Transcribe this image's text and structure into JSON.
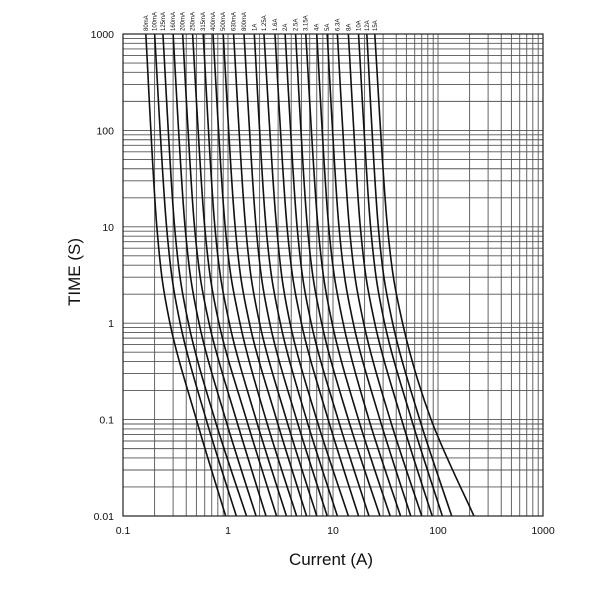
{
  "chart_data": {
    "type": "line",
    "xlabel": "Current (A)",
    "ylabel": "TIME (S)",
    "x_scale": "log",
    "y_scale": "log",
    "xlim": [
      0.1,
      1000
    ],
    "ylim": [
      0.01,
      1000
    ],
    "x_ticks": [
      "0.1",
      "1",
      "10",
      "100",
      "1000"
    ],
    "y_ticks": [
      "0.01",
      "0.1",
      "1",
      "10",
      "100",
      "1000"
    ],
    "grid": true,
    "series": [
      {
        "name": "80mA",
        "values": [
          [
            0.165,
            1000
          ],
          [
            0.21,
            10
          ],
          [
            0.28,
            1
          ],
          [
            0.5,
            0.1
          ],
          [
            0.95,
            0.01
          ]
        ]
      },
      {
        "name": "100mA",
        "values": [
          [
            0.2,
            1000
          ],
          [
            0.26,
            10
          ],
          [
            0.35,
            1
          ],
          [
            0.62,
            0.1
          ],
          [
            1.2,
            0.01
          ]
        ]
      },
      {
        "name": "125mA",
        "values": [
          [
            0.24,
            1000
          ],
          [
            0.31,
            10
          ],
          [
            0.42,
            1
          ],
          [
            0.75,
            0.1
          ],
          [
            1.5,
            0.01
          ]
        ]
      },
      {
        "name": "160mA",
        "values": [
          [
            0.3,
            1000
          ],
          [
            0.39,
            10
          ],
          [
            0.53,
            1
          ],
          [
            0.95,
            0.1
          ],
          [
            1.85,
            0.01
          ]
        ]
      },
      {
        "name": "200mA",
        "values": [
          [
            0.37,
            1000
          ],
          [
            0.48,
            10
          ],
          [
            0.66,
            1
          ],
          [
            1.2,
            0.1
          ],
          [
            2.3,
            0.01
          ]
        ]
      },
      {
        "name": "250mA",
        "values": [
          [
            0.46,
            1000
          ],
          [
            0.6,
            10
          ],
          [
            0.82,
            1
          ],
          [
            1.5,
            0.1
          ],
          [
            2.9,
            0.01
          ]
        ]
      },
      {
        "name": "315mA",
        "values": [
          [
            0.58,
            1000
          ],
          [
            0.75,
            10
          ],
          [
            1.03,
            1
          ],
          [
            1.85,
            0.1
          ],
          [
            3.6,
            0.01
          ]
        ]
      },
      {
        "name": "400mA",
        "values": [
          [
            0.72,
            1000
          ],
          [
            0.94,
            10
          ],
          [
            1.3,
            1
          ],
          [
            2.3,
            0.1
          ],
          [
            4.5,
            0.01
          ]
        ]
      },
      {
        "name": "500mA",
        "values": [
          [
            0.9,
            1000
          ],
          [
            1.17,
            10
          ],
          [
            1.6,
            1
          ],
          [
            2.9,
            0.1
          ],
          [
            5.6,
            0.01
          ]
        ]
      },
      {
        "name": "630mA",
        "values": [
          [
            1.13,
            1000
          ],
          [
            1.47,
            10
          ],
          [
            2.0,
            1
          ],
          [
            3.6,
            0.1
          ],
          [
            7.0,
            0.01
          ]
        ]
      },
      {
        "name": "800mA",
        "values": [
          [
            1.42,
            1000
          ],
          [
            1.85,
            10
          ],
          [
            2.5,
            1
          ],
          [
            4.5,
            0.1
          ],
          [
            8.8,
            0.01
          ]
        ]
      },
      {
        "name": "1A",
        "values": [
          [
            1.78,
            1000
          ],
          [
            2.3,
            10
          ],
          [
            3.15,
            1
          ],
          [
            5.6,
            0.1
          ],
          [
            11,
            0.01
          ]
        ]
      },
      {
        "name": "1.25A",
        "values": [
          [
            2.2,
            1000
          ],
          [
            2.9,
            10
          ],
          [
            3.9,
            1
          ],
          [
            7.0,
            0.1
          ],
          [
            14,
            0.01
          ]
        ]
      },
      {
        "name": "1.6A",
        "values": [
          [
            2.8,
            1000
          ],
          [
            3.65,
            10
          ],
          [
            5.0,
            1
          ],
          [
            9.0,
            0.1
          ],
          [
            17.5,
            0.01
          ]
        ]
      },
      {
        "name": "2A",
        "values": [
          [
            3.5,
            1000
          ],
          [
            4.55,
            10
          ],
          [
            6.2,
            1
          ],
          [
            11.2,
            0.1
          ],
          [
            22,
            0.01
          ]
        ]
      },
      {
        "name": "2.5A",
        "values": [
          [
            4.4,
            1000
          ],
          [
            5.7,
            10
          ],
          [
            7.8,
            1
          ],
          [
            14,
            0.1
          ],
          [
            28,
            0.01
          ]
        ]
      },
      {
        "name": "3.15A",
        "values": [
          [
            5.5,
            1000
          ],
          [
            7.2,
            10
          ],
          [
            9.8,
            1
          ],
          [
            17.5,
            0.1
          ],
          [
            35,
            0.01
          ]
        ]
      },
      {
        "name": "4A",
        "values": [
          [
            7.0,
            1000
          ],
          [
            9.1,
            10
          ],
          [
            12.5,
            1
          ],
          [
            22,
            0.1
          ],
          [
            44,
            0.01
          ]
        ]
      },
      {
        "name": "5A",
        "values": [
          [
            8.8,
            1000
          ],
          [
            11.4,
            10
          ],
          [
            15.6,
            1
          ],
          [
            28,
            0.1
          ],
          [
            55,
            0.01
          ]
        ]
      },
      {
        "name": "6.3A",
        "values": [
          [
            11,
            1000
          ],
          [
            14.3,
            10
          ],
          [
            19.6,
            1
          ],
          [
            35,
            0.1
          ],
          [
            70,
            0.01
          ]
        ]
      },
      {
        "name": "8A",
        "values": [
          [
            14,
            1000
          ],
          [
            18.2,
            10
          ],
          [
            25,
            1
          ],
          [
            45,
            0.1
          ],
          [
            88,
            0.01
          ]
        ]
      },
      {
        "name": "10A",
        "values": [
          [
            17.5,
            1000
          ],
          [
            22.8,
            10
          ],
          [
            31,
            1
          ],
          [
            56,
            0.1
          ],
          [
            110,
            0.01
          ]
        ]
      },
      {
        "name": "12A",
        "values": [
          [
            21,
            1000
          ],
          [
            27,
            10
          ],
          [
            37,
            1
          ],
          [
            67,
            0.1
          ],
          [
            135,
            0.01
          ]
        ]
      },
      {
        "name": "15A",
        "values": [
          [
            25,
            1000
          ],
          [
            33,
            10
          ],
          [
            46,
            1
          ],
          [
            86,
            0.1
          ],
          [
            220,
            0.01
          ]
        ]
      }
    ]
  }
}
